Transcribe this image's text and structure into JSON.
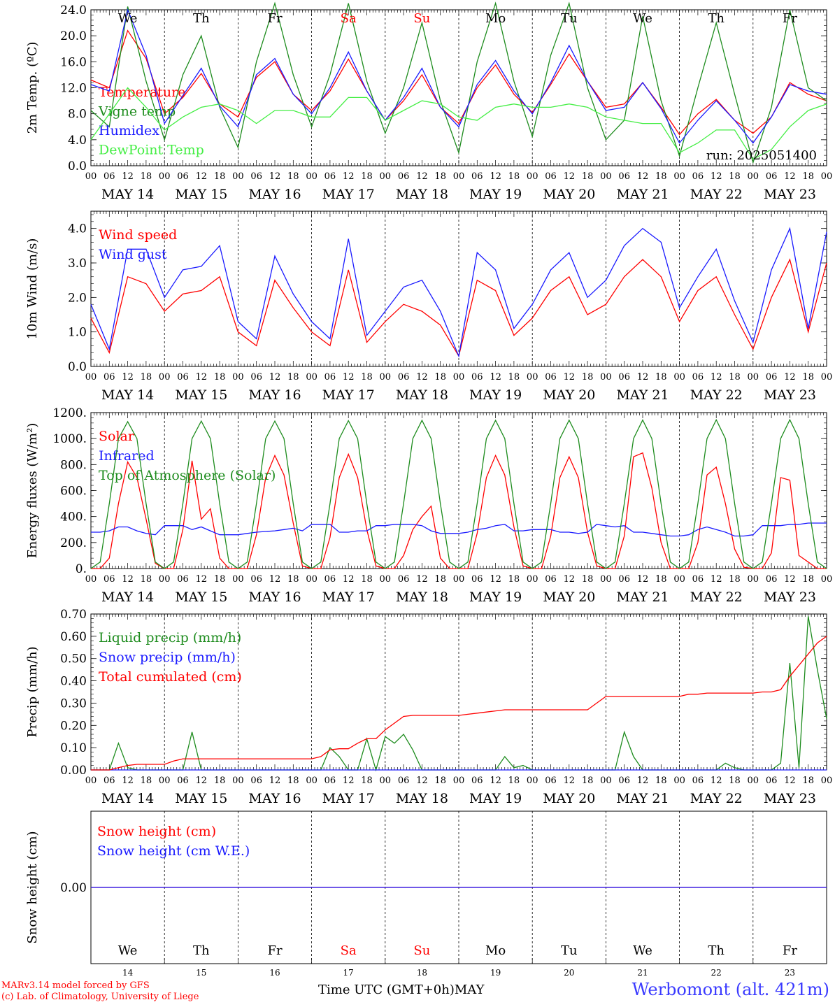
{
  "days": {
    "weekdays": [
      "We",
      "Th",
      "Fr",
      "Sa",
      "Su",
      "Mo",
      "Tu",
      "We",
      "Th",
      "Fr"
    ],
    "weekend_flags": [
      false,
      false,
      false,
      true,
      true,
      false,
      false,
      false,
      false,
      false
    ],
    "dates": [
      "MAY 14",
      "MAY 15",
      "MAY 16",
      "MAY 17",
      "MAY 18",
      "MAY 19",
      "MAY 20",
      "MAY 21",
      "MAY 22",
      "MAY 23"
    ],
    "day_numbers": [
      "14",
      "15",
      "16",
      "17",
      "18",
      "19",
      "20",
      "21",
      "22",
      "23"
    ],
    "hour_ticks": [
      "00",
      "06",
      "12",
      "18"
    ],
    "end_tick": "00"
  },
  "colors": {
    "red": "#ff0000",
    "darkgreen": "#1e8c1e",
    "blue": "#1a1aff",
    "lightgreen": "#44ee44",
    "weekend": "#ff0000",
    "station": "#3a3aff"
  },
  "chart_data": [
    {
      "type": "line",
      "ylabel": "2m Temp. (ºC)",
      "ylim": [
        0,
        24
      ],
      "yticks": [
        "0.0",
        "4.0",
        "8.0",
        "12.0",
        "16.0",
        "20.0",
        "24.0"
      ],
      "run_label": "run: 2025051400",
      "x_hours": [
        0,
        6,
        12,
        18,
        24,
        30,
        36,
        42,
        48,
        54,
        60,
        66,
        72,
        78,
        84,
        90,
        96,
        102,
        108,
        114,
        120,
        126,
        132,
        138,
        144,
        150,
        156,
        162,
        168,
        174,
        180,
        186,
        192,
        198,
        204,
        210,
        216,
        222,
        228,
        234,
        240
      ],
      "series": [
        {
          "name": "Temperature",
          "color": "red",
          "values": [
            13.2,
            12.0,
            20.8,
            16.5,
            8.0,
            10.5,
            14.2,
            9.5,
            7.5,
            13.6,
            16.0,
            11.0,
            8.5,
            11.5,
            16.4,
            11.5,
            7.0,
            10.0,
            14.0,
            9.0,
            6.5,
            12.0,
            15.5,
            11.0,
            8.2,
            12.5,
            17.2,
            13.0,
            9.0,
            9.5,
            12.8,
            9.0,
            4.8,
            8.0,
            10.2,
            7.0,
            5.0,
            7.5,
            12.8,
            11.0,
            10.0
          ]
        },
        {
          "name": "Vigne temp",
          "color": "darkgreen",
          "values": [
            8.5,
            6.0,
            24.5,
            13.0,
            4.0,
            14.0,
            20.0,
            9.0,
            2.8,
            16.0,
            25.0,
            14.0,
            6.0,
            14.0,
            25.0,
            13.0,
            5.0,
            12.0,
            22.0,
            10.0,
            2.0,
            16.0,
            25.0,
            13.0,
            4.5,
            17.0,
            25.0,
            12.0,
            4.0,
            7.0,
            23.0,
            10.0,
            1.5,
            12.0,
            22.0,
            11.0,
            0.5,
            9.0,
            24.0,
            12.0,
            10.0
          ]
        },
        {
          "name": "Humidex",
          "color": "blue",
          "values": [
            12.5,
            11.5,
            24.0,
            17.0,
            6.5,
            10.8,
            15.0,
            9.2,
            6.0,
            14.0,
            16.5,
            11.0,
            8.0,
            12.0,
            17.5,
            11.5,
            7.0,
            10.5,
            15.0,
            9.0,
            6.0,
            12.5,
            16.2,
            11.5,
            8.0,
            12.8,
            18.5,
            13.0,
            8.5,
            9.0,
            12.8,
            8.8,
            3.5,
            7.0,
            10.0,
            7.0,
            3.5,
            7.5,
            12.5,
            11.5,
            11.0
          ]
        },
        {
          "name": "DewPoint Temp",
          "color": "lightgreen",
          "values": [
            4.0,
            8.0,
            12.0,
            9.0,
            5.5,
            7.5,
            9.0,
            9.5,
            8.5,
            6.5,
            8.5,
            8.5,
            7.5,
            7.5,
            10.5,
            10.5,
            7.0,
            8.5,
            10.0,
            9.5,
            7.5,
            7.0,
            9.0,
            9.5,
            9.0,
            9.0,
            9.5,
            9.0,
            7.5,
            7.0,
            6.5,
            6.5,
            2.0,
            3.5,
            5.5,
            5.5,
            1.0,
            2.5,
            6.0,
            8.5,
            9.5
          ]
        }
      ]
    },
    {
      "type": "line",
      "ylabel": "10m Wind (m/s)",
      "ylim": [
        0,
        4.5
      ],
      "yticks": [
        "0.0",
        "1.0",
        "2.0",
        "3.0",
        "4.0"
      ],
      "x_hours": [
        0,
        6,
        12,
        18,
        24,
        30,
        36,
        42,
        48,
        54,
        60,
        66,
        72,
        78,
        84,
        90,
        96,
        102,
        108,
        114,
        120,
        126,
        132,
        138,
        144,
        150,
        156,
        162,
        168,
        174,
        180,
        186,
        192,
        198,
        204,
        210,
        216,
        222,
        228,
        234,
        240
      ],
      "series": [
        {
          "name": "Wind speed",
          "color": "red",
          "values": [
            1.4,
            0.4,
            2.6,
            2.4,
            1.6,
            2.1,
            2.2,
            2.6,
            1.0,
            0.6,
            2.5,
            1.7,
            1.0,
            0.6,
            2.8,
            0.7,
            1.3,
            1.8,
            1.6,
            1.2,
            0.3,
            2.5,
            2.2,
            0.9,
            1.4,
            2.2,
            2.6,
            1.5,
            1.8,
            2.6,
            3.1,
            2.6,
            1.3,
            2.2,
            2.6,
            1.5,
            0.5,
            2.0,
            3.1,
            1.0,
            3.0
          ]
        },
        {
          "name": "Wind gust",
          "color": "blue",
          "values": [
            1.8,
            0.5,
            3.4,
            3.4,
            2.0,
            2.8,
            2.9,
            3.5,
            1.3,
            0.8,
            3.2,
            2.1,
            1.3,
            0.8,
            3.7,
            0.9,
            1.6,
            2.3,
            2.5,
            1.6,
            0.3,
            3.3,
            2.8,
            1.1,
            1.8,
            2.8,
            3.3,
            2.0,
            2.5,
            3.5,
            4.0,
            3.6,
            1.7,
            2.6,
            3.4,
            1.9,
            0.7,
            2.8,
            4.0,
            1.1,
            3.9
          ]
        }
      ]
    },
    {
      "type": "line",
      "ylabel": "Energy fluxes (W/m²)",
      "ylim": [
        0,
        1200
      ],
      "yticks": [
        "0.",
        "200.",
        "400.",
        "600.",
        "800.",
        "1000.",
        "1200."
      ],
      "x_hours": [
        0,
        3,
        6,
        9,
        12,
        15,
        18,
        21,
        24,
        27,
        30,
        33,
        36,
        39,
        42,
        45,
        48,
        51,
        54,
        57,
        60,
        63,
        66,
        69,
        72,
        75,
        78,
        81,
        84,
        87,
        90,
        93,
        96,
        99,
        102,
        105,
        108,
        111,
        114,
        117,
        120,
        123,
        126,
        129,
        132,
        135,
        138,
        141,
        144,
        147,
        150,
        153,
        156,
        159,
        162,
        165,
        168,
        171,
        174,
        177,
        180,
        183,
        186,
        189,
        192,
        195,
        198,
        201,
        204,
        207,
        210,
        213,
        216,
        219,
        222,
        225,
        228,
        231,
        234,
        237,
        240
      ],
      "series": [
        {
          "name": "Solar",
          "color": "red",
          "values": [
            0,
            0,
            80,
            500,
            820,
            700,
            380,
            40,
            0,
            0,
            300,
            830,
            380,
            460,
            80,
            0,
            0,
            0,
            260,
            700,
            870,
            720,
            350,
            20,
            0,
            0,
            240,
            700,
            880,
            700,
            300,
            20,
            0,
            0,
            100,
            300,
            400,
            480,
            80,
            0,
            0,
            0,
            270,
            700,
            870,
            720,
            320,
            20,
            0,
            0,
            250,
            700,
            860,
            700,
            280,
            20,
            0,
            0,
            250,
            860,
            890,
            620,
            200,
            0,
            0,
            0,
            200,
            720,
            780,
            500,
            150,
            10,
            0,
            0,
            120,
            700,
            680,
            100,
            50,
            0,
            0
          ]
        },
        {
          "name": "Infrared",
          "color": "blue",
          "values": [
            280,
            280,
            290,
            320,
            320,
            290,
            270,
            260,
            330,
            330,
            330,
            300,
            320,
            290,
            260,
            260,
            260,
            270,
            280,
            285,
            290,
            300,
            310,
            290,
            340,
            340,
            340,
            280,
            280,
            290,
            290,
            330,
            330,
            340,
            340,
            340,
            330,
            290,
            270,
            270,
            270,
            280,
            300,
            310,
            330,
            340,
            290,
            290,
            300,
            300,
            300,
            280,
            280,
            270,
            280,
            340,
            330,
            320,
            330,
            280,
            280,
            270,
            260,
            250,
            250,
            260,
            300,
            320,
            300,
            280,
            250,
            250,
            260,
            330,
            330,
            330,
            340,
            340,
            350,
            350,
            350
          ]
        },
        {
          "name": "Top of Atmosphere (Solar)",
          "color": "darkgreen",
          "values": [
            0,
            50,
            500,
            1000,
            1130,
            1000,
            500,
            50,
            0,
            50,
            500,
            1000,
            1135,
            1000,
            500,
            50,
            0,
            50,
            500,
            1000,
            1135,
            1000,
            500,
            50,
            0,
            50,
            500,
            1000,
            1138,
            1000,
            500,
            50,
            0,
            50,
            500,
            1000,
            1140,
            1000,
            500,
            50,
            0,
            50,
            500,
            1000,
            1140,
            1000,
            500,
            50,
            0,
            50,
            500,
            1000,
            1142,
            1000,
            500,
            50,
            0,
            50,
            500,
            1000,
            1143,
            1000,
            500,
            50,
            0,
            50,
            500,
            1000,
            1144,
            1000,
            500,
            50,
            0,
            50,
            500,
            1000,
            1145,
            1000,
            500,
            50,
            0
          ]
        }
      ]
    },
    {
      "type": "line",
      "ylabel": "Precip (mm/h)",
      "ylim": [
        0,
        0.7
      ],
      "yticks": [
        "0.00",
        "0.10",
        "0.20",
        "0.30",
        "0.40",
        "0.50",
        "0.60",
        "0.70"
      ],
      "x_hours": [
        0,
        3,
        6,
        9,
        12,
        15,
        18,
        21,
        24,
        27,
        30,
        33,
        36,
        39,
        42,
        45,
        48,
        51,
        54,
        57,
        60,
        63,
        66,
        69,
        72,
        75,
        78,
        81,
        84,
        87,
        90,
        93,
        96,
        99,
        102,
        105,
        108,
        111,
        114,
        117,
        120,
        123,
        126,
        129,
        132,
        135,
        138,
        141,
        144,
        147,
        150,
        153,
        156,
        159,
        162,
        165,
        168,
        171,
        174,
        177,
        180,
        183,
        186,
        189,
        192,
        195,
        198,
        201,
        204,
        207,
        210,
        213,
        216,
        219,
        222,
        225,
        228,
        231,
        234,
        237,
        240
      ],
      "series": [
        {
          "name": "Liquid precip (mm/h)",
          "color": "darkgreen",
          "values": [
            0,
            0,
            0,
            0.12,
            0.01,
            0,
            0,
            0,
            0,
            0,
            0,
            0.17,
            0,
            0,
            0,
            0,
            0,
            0,
            0,
            0,
            0,
            0,
            0,
            0,
            0,
            0,
            0.1,
            0.06,
            0,
            0,
            0.14,
            0,
            0.15,
            0.12,
            0.16,
            0.09,
            0,
            0,
            0,
            0,
            0,
            0,
            0,
            0,
            0,
            0.06,
            0.01,
            0.02,
            0,
            0,
            0,
            0,
            0,
            0,
            0,
            0,
            0,
            0,
            0.17,
            0.06,
            0,
            0,
            0,
            0,
            0,
            0,
            0,
            0,
            0,
            0.03,
            0.01,
            0,
            0,
            0,
            0,
            0.03,
            0.48,
            0.01,
            0.69,
            0.45,
            0.23
          ]
        },
        {
          "name": "Snow precip (mm/h)",
          "color": "blue",
          "values": [
            0,
            0,
            0,
            0,
            0,
            0,
            0,
            0,
            0,
            0,
            0,
            0,
            0,
            0,
            0,
            0,
            0,
            0,
            0,
            0,
            0,
            0,
            0,
            0,
            0,
            0,
            0,
            0,
            0,
            0,
            0,
            0,
            0,
            0,
            0,
            0,
            0,
            0,
            0,
            0,
            0,
            0,
            0,
            0,
            0,
            0,
            0,
            0,
            0,
            0,
            0,
            0,
            0,
            0,
            0,
            0,
            0,
            0,
            0,
            0,
            0,
            0,
            0,
            0,
            0,
            0,
            0,
            0,
            0,
            0,
            0,
            0,
            0,
            0,
            0,
            0,
            0,
            0,
            0,
            0,
            0
          ]
        },
        {
          "name": "Total cumulated (cm)",
          "color": "red",
          "values": [
            0,
            0,
            0,
            0.01,
            0.02,
            0.025,
            0.025,
            0.025,
            0.025,
            0.04,
            0.05,
            0.05,
            0.05,
            0.05,
            0.05,
            0.05,
            0.05,
            0.05,
            0.05,
            0.05,
            0.05,
            0.05,
            0.05,
            0.05,
            0.05,
            0.06,
            0.09,
            0.095,
            0.095,
            0.12,
            0.14,
            0.14,
            0.18,
            0.21,
            0.24,
            0.245,
            0.245,
            0.245,
            0.245,
            0.245,
            0.245,
            0.25,
            0.255,
            0.26,
            0.265,
            0.27,
            0.27,
            0.27,
            0.27,
            0.27,
            0.27,
            0.27,
            0.27,
            0.27,
            0.27,
            0.3,
            0.33,
            0.33,
            0.33,
            0.33,
            0.33,
            0.33,
            0.33,
            0.33,
            0.33,
            0.34,
            0.34,
            0.345,
            0.345,
            0.345,
            0.345,
            0.345,
            0.345,
            0.35,
            0.35,
            0.36,
            0.42,
            0.47,
            0.52,
            0.57,
            0.6
          ]
        }
      ]
    },
    {
      "type": "line",
      "ylabel": "Snow height (cm)",
      "ylim": [
        -1,
        1
      ],
      "yticks": [
        "0.00"
      ],
      "x_hours": [
        0,
        240
      ],
      "series": [
        {
          "name": "Snow height (cm)",
          "color": "red",
          "values": [
            0,
            0
          ]
        },
        {
          "name": "Snow height (cm W.E.)",
          "color": "blue",
          "values": [
            0,
            0
          ]
        }
      ]
    }
  ],
  "footer": {
    "credits": [
      "MARv3.14 model forced by GFS",
      "(c) Lab. of Climatology, University of Liege"
    ],
    "xtitle": "Time UTC (GMT+0h)MAY",
    "station": "Werbomont (alt. 421m)"
  }
}
